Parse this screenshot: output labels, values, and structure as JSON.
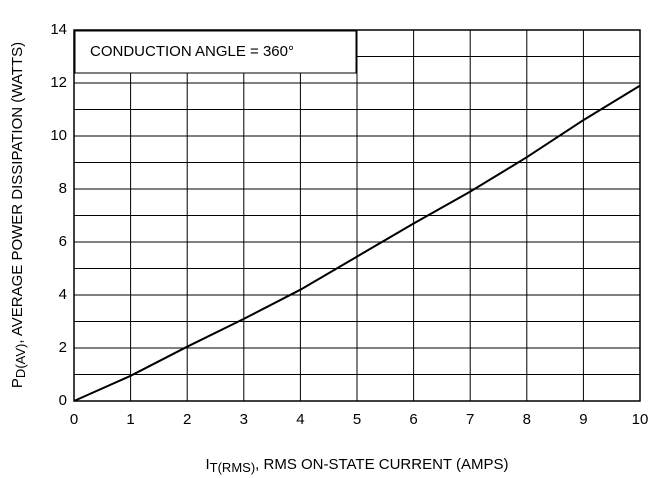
{
  "chart_data": {
    "type": "line",
    "annotation": "CONDUCTION ANGLE = 360°",
    "x_label": {
      "main": "I",
      "sub": "T(RMS)",
      "rest": ", RMS ON-STATE CURRENT (AMPS)"
    },
    "y_label": {
      "main": "P",
      "sub": "D(AV)",
      "rest": ", AVERAGE POWER DISSIPATION (WATTS)"
    },
    "x": [
      0,
      1,
      2,
      3,
      4,
      5,
      6,
      7,
      8,
      9,
      10
    ],
    "series": [
      {
        "color": "#000000",
        "values": [
          0,
          0.95,
          2.05,
          3.1,
          4.2,
          5.45,
          6.7,
          7.9,
          9.2,
          10.6,
          11.9
        ]
      }
    ],
    "xlim": [
      0,
      10
    ],
    "ylim": [
      0,
      14
    ],
    "xticks": [
      0,
      1,
      2,
      3,
      4,
      5,
      6,
      7,
      8,
      9,
      10
    ],
    "yticks": [
      0,
      2,
      4,
      6,
      8,
      10,
      12,
      14
    ],
    "minor_yticks": [
      1,
      3,
      5,
      7,
      9,
      11,
      13
    ],
    "grid": true
  }
}
